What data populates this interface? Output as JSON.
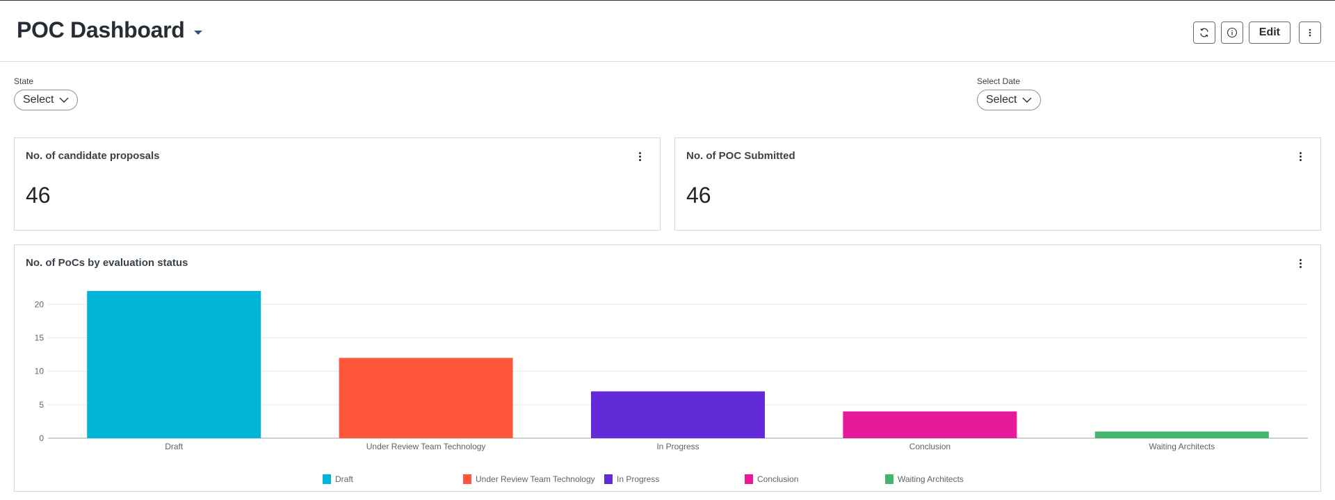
{
  "header": {
    "title": "POC Dashboard",
    "edit_label": "Edit",
    "icons": [
      "refresh-icon",
      "info-icon",
      "more-vertical-icon"
    ]
  },
  "filters": {
    "state": {
      "label": "State",
      "value": "Select"
    },
    "date": {
      "label": "Select Date",
      "value": "Select"
    }
  },
  "cards": {
    "candidate_proposals": {
      "title": "No. of candidate proposals",
      "value": "46"
    },
    "poc_submitted": {
      "title": "No. of POC Submitted",
      "value": "46"
    },
    "evaluation_status": {
      "title": "No. of PoCs by evaluation status"
    }
  },
  "chart_data": {
    "type": "bar",
    "categories": [
      "Draft",
      "Under Review Team Technology",
      "In Progress",
      "Conclusion",
      "Waiting Architects"
    ],
    "values": [
      22,
      12,
      7,
      4,
      1
    ],
    "colors": [
      "#00b5d8",
      "#ff553b",
      "#632ad7",
      "#e6199b",
      "#44b56c"
    ],
    "ylim": [
      0,
      22
    ],
    "yticks": [
      0,
      5,
      10,
      15,
      20
    ],
    "grid": true,
    "legend": "bottom"
  }
}
